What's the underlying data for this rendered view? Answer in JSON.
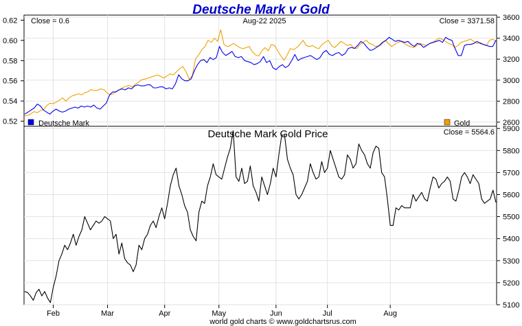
{
  "chart_data": [
    {
      "type": "line",
      "title": "Deutsche Mark v Gold",
      "date_label": "Aug-22  2025",
      "close_left": "Close = 0.6",
      "close_right": "Close = 3371.58",
      "ylim_left": [
        0.515,
        0.625
      ],
      "ylim_right": [
        2560,
        3620
      ],
      "yticks_left": [
        "0.52",
        "0.54",
        "0.56",
        "0.58",
        "0.60",
        "0.62"
      ],
      "yticks_right": [
        "2600",
        "2800",
        "3000",
        "3200",
        "3400",
        "3600"
      ],
      "legend": [
        "Deutsche Mark",
        "Gold"
      ],
      "colors": {
        "dm": "#0000ee",
        "gold": "#f0a000"
      },
      "series": [
        {
          "name": "Deutsche Mark",
          "axis": "left",
          "values": [
            0.527,
            0.529,
            0.531,
            0.533,
            0.537,
            0.535,
            0.531,
            0.529,
            0.527,
            0.53,
            0.532,
            0.53,
            0.529,
            0.53,
            0.532,
            0.533,
            0.534,
            0.533,
            0.535,
            0.534,
            0.535,
            0.534,
            0.536,
            0.533,
            0.532,
            0.535,
            0.538,
            0.546,
            0.549,
            0.549,
            0.551,
            0.552,
            0.551,
            0.553,
            0.552,
            0.555,
            0.556,
            0.555,
            0.555,
            0.556,
            0.556,
            0.553,
            0.553,
            0.554,
            0.554,
            0.552,
            0.553,
            0.552,
            0.557,
            0.566,
            0.562,
            0.56,
            0.56,
            0.562,
            0.57,
            0.576,
            0.58,
            0.581,
            0.578,
            0.583,
            0.581,
            0.583,
            0.594,
            0.588,
            0.585,
            0.587,
            0.589,
            0.584,
            0.583,
            0.584,
            0.58,
            0.579,
            0.578,
            0.576,
            0.577,
            0.579,
            0.584,
            0.578,
            0.58,
            0.573,
            0.571,
            0.574,
            0.576,
            0.573,
            0.575,
            0.58,
            0.586,
            0.58,
            0.582,
            0.583,
            0.584,
            0.585,
            0.583,
            0.581,
            0.583,
            0.588,
            0.59,
            0.586,
            0.585,
            0.587,
            0.588,
            0.585,
            0.587,
            0.592,
            0.593,
            0.592,
            0.595,
            0.599,
            0.597,
            0.593,
            0.59,
            0.591,
            0.593,
            0.595,
            0.598,
            0.6,
            0.603,
            0.601,
            0.599,
            0.6,
            0.599,
            0.598,
            0.599,
            0.596,
            0.594,
            0.597,
            0.596,
            0.593,
            0.595,
            0.597,
            0.598,
            0.599,
            0.6,
            0.598,
            0.603,
            0.601,
            0.6,
            0.592,
            0.585,
            0.585,
            0.595,
            0.596,
            0.596,
            0.597,
            0.599,
            0.597,
            0.596,
            0.595,
            0.594,
            0.594,
            0.6
          ]
        },
        {
          "name": "Gold",
          "axis": "right",
          "values": [
            2660,
            2665,
            2680,
            2700,
            2690,
            2710,
            2720,
            2760,
            2780,
            2775,
            2790,
            2810,
            2830,
            2800,
            2830,
            2850,
            2860,
            2870,
            2860,
            2880,
            2890,
            2910,
            2900,
            2905,
            2915,
            2910,
            2880,
            2860,
            2870,
            2890,
            2910,
            2930,
            2940,
            2950,
            2935,
            2960,
            2980,
            3005,
            3010,
            3020,
            3030,
            3040,
            3050,
            3035,
            3020,
            3040,
            3060,
            3050,
            3080,
            3110,
            3130,
            3080,
            3010,
            3040,
            3200,
            3240,
            3290,
            3320,
            3380,
            3360,
            3400,
            3370,
            3480,
            3340,
            3320,
            3330,
            3350,
            3330,
            3310,
            3300,
            3310,
            3320,
            3270,
            3240,
            3230,
            3280,
            3310,
            3280,
            3340,
            3330,
            3280,
            3230,
            3190,
            3240,
            3300,
            3290,
            3310,
            3340,
            3380,
            3330,
            3320,
            3330,
            3310,
            3300,
            3340,
            3360,
            3380,
            3330,
            3310,
            3340,
            3370,
            3350,
            3330,
            3340,
            3310,
            3300,
            3340,
            3360,
            3380,
            3350,
            3340,
            3320,
            3330,
            3360,
            3380,
            3350,
            3320,
            3340,
            3360,
            3370,
            3350,
            3330,
            3320,
            3310,
            3330,
            3350,
            3340,
            3330,
            3350,
            3360,
            3380,
            3400,
            3390,
            3370,
            3350,
            3340,
            3310,
            3330,
            3360,
            3370,
            3380,
            3390,
            3370,
            3350,
            3360,
            3340,
            3330,
            3380,
            3390,
            3371.58
          ]
        }
      ]
    },
    {
      "type": "line",
      "title": "Deutsche Mark Gold Price",
      "close_label": "Close = 5564.6",
      "ylim": [
        5100,
        5910
      ],
      "yticks": [
        "5100",
        "5200",
        "5300",
        "5400",
        "5500",
        "5600",
        "5700",
        "5800",
        "5900"
      ],
      "x_ticks": [
        "Feb",
        "Mar",
        "Apr",
        "May",
        "Jun",
        "Jul",
        "Aug"
      ],
      "x_tick_index": [
        10,
        29,
        49,
        68,
        88,
        106,
        128
      ],
      "color": "#000000",
      "values": [
        5160,
        5155,
        5140,
        5120,
        5155,
        5170,
        5140,
        5160,
        5130,
        5110,
        5180,
        5230,
        5300,
        5330,
        5370,
        5350,
        5380,
        5420,
        5370,
        5410,
        5440,
        5500,
        5470,
        5440,
        5460,
        5480,
        5470,
        5480,
        5500,
        5490,
        5480,
        5400,
        5420,
        5330,
        5380,
        5310,
        5290,
        5280,
        5250,
        5280,
        5370,
        5350,
        5400,
        5420,
        5460,
        5480,
        5450,
        5500,
        5540,
        5490,
        5560,
        5640,
        5690,
        5720,
        5640,
        5600,
        5550,
        5520,
        5440,
        5410,
        5390,
        5520,
        5570,
        5560,
        5640,
        5680,
        5740,
        5690,
        5680,
        5670,
        5720,
        5770,
        5810,
        5890,
        5680,
        5660,
        5720,
        5650,
        5660,
        5730,
        5640,
        5610,
        5570,
        5680,
        5640,
        5600,
        5650,
        5720,
        5680,
        5780,
        5870,
        5870,
        5760,
        5720,
        5690,
        5600,
        5580,
        5600,
        5630,
        5660,
        5740,
        5700,
        5670,
        5680,
        5750,
        5700,
        5720,
        5800,
        5760,
        5720,
        5680,
        5670,
        5690,
        5780,
        5760,
        5720,
        5740,
        5830,
        5800,
        5780,
        5740,
        5720,
        5790,
        5820,
        5810,
        5700,
        5680,
        5580,
        5460,
        5460,
        5540,
        5530,
        5550,
        5540,
        5540,
        5540,
        5600,
        5570,
        5590,
        5610,
        5580,
        5570,
        5630,
        5680,
        5670,
        5630,
        5650,
        5660,
        5680,
        5660,
        5580,
        5570,
        5620,
        5680,
        5700,
        5680,
        5650,
        5690,
        5670,
        5650,
        5580,
        5560,
        5570,
        5580,
        5620,
        5564.6
      ]
    }
  ],
  "footer": "world gold charts © www.goldchartsrus.com"
}
